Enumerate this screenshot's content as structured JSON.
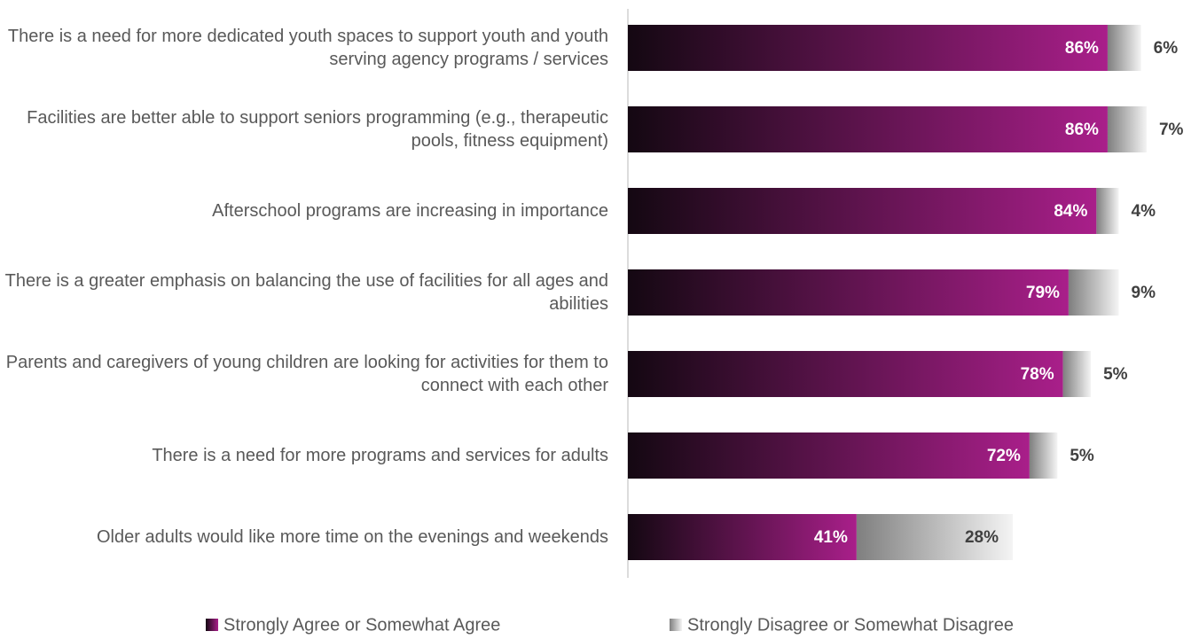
{
  "chart_data": {
    "type": "stacked-bar-horizontal",
    "categories": [
      "There is a need for more dedicated youth spaces to support youth and youth serving agency programs / services",
      "Facilities are better able to support seniors programming (e.g., therapeutic pools, fitness equipment)",
      "Afterschool programs are increasing in importance",
      "There is a greater emphasis on balancing the use of facilities for all ages and abilities",
      "Parents and caregivers of young children are looking for activities for them to connect with each other",
      "There is a need for more programs and services for adults",
      "Older adults would like more time on the evenings and weekends"
    ],
    "series": [
      {
        "name": "Strongly Agree or Somewhat Agree",
        "color": "#a91f8a",
        "values": [
          86,
          86,
          84,
          79,
          78,
          72,
          41
        ],
        "value_labels": [
          "86%",
          "86%",
          "84%",
          "79%",
          "78%",
          "72%",
          "41%"
        ]
      },
      {
        "name": "Strongly Disagree or Somewhat Disagree",
        "color": "#bfbfbf",
        "values": [
          6,
          7,
          4,
          9,
          5,
          5,
          28
        ],
        "value_labels": [
          "6%",
          "7%",
          "4%",
          "9%",
          "5%",
          "5%",
          "28%"
        ]
      }
    ],
    "legend": "bottom"
  }
}
